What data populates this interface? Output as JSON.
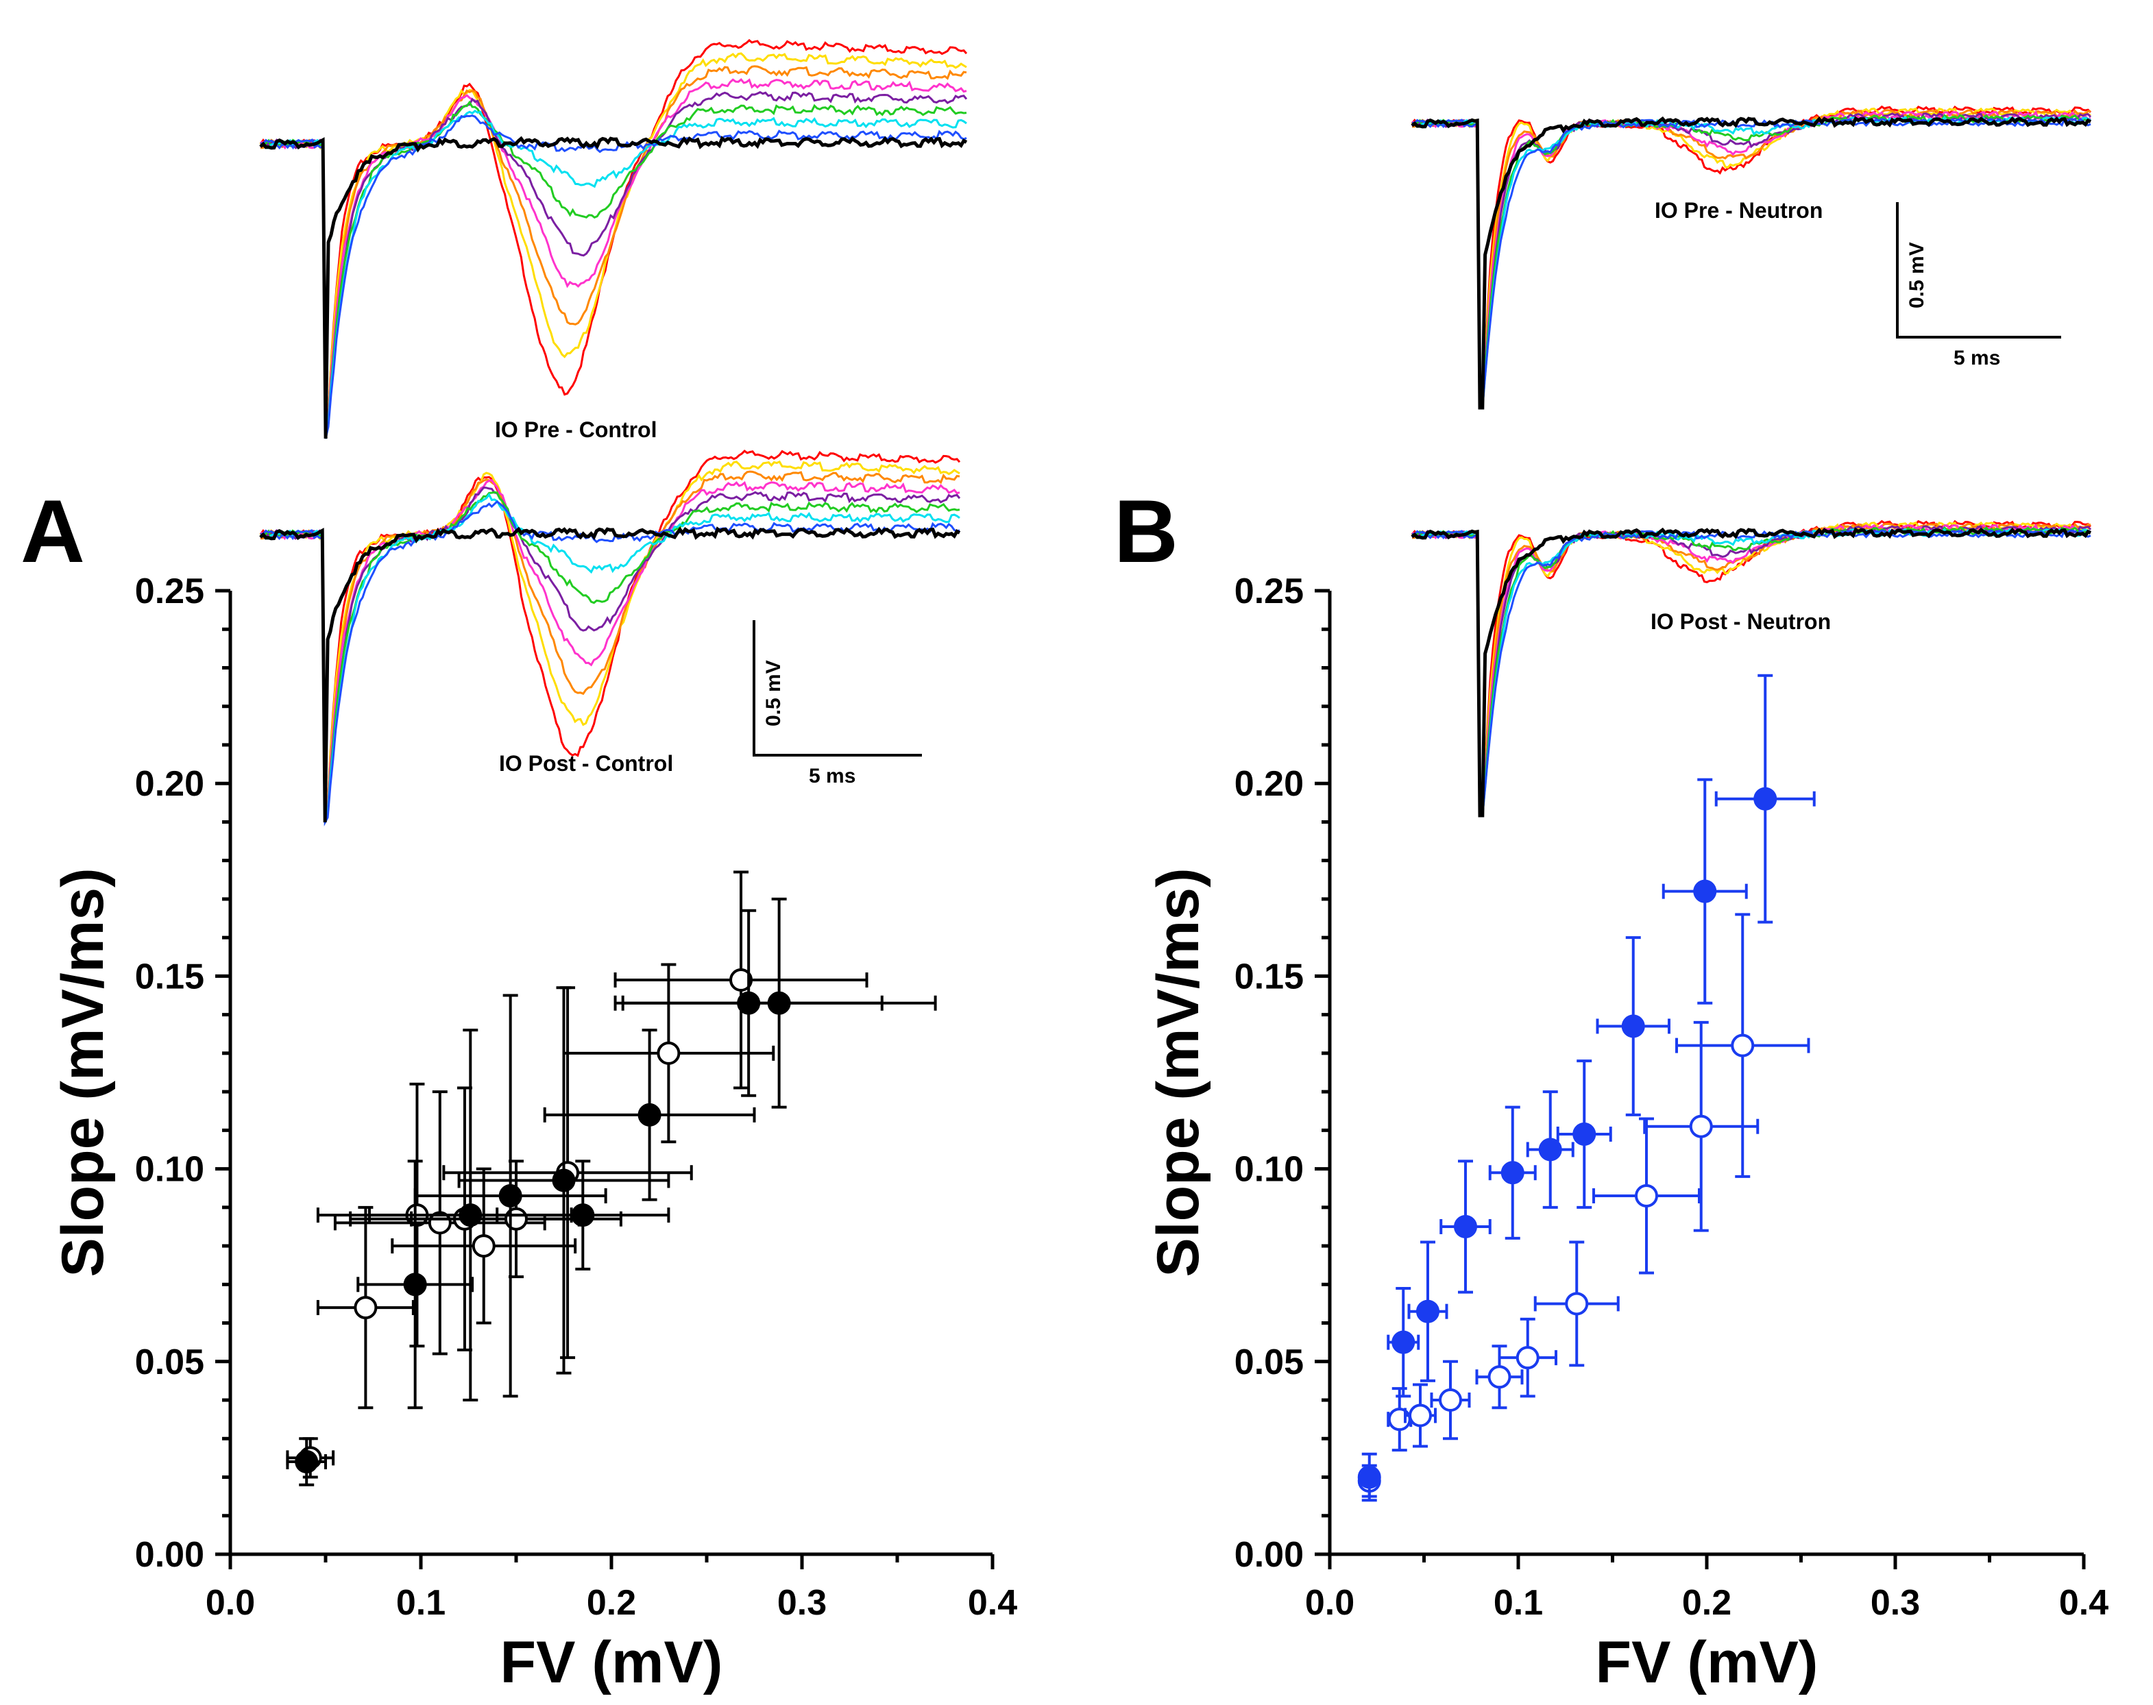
{
  "panel_letters": {
    "a": "A",
    "b": "B"
  },
  "trace_labels": {
    "io_pre_control": "IO Pre - Control",
    "io_post_control": "IO Post - Control",
    "io_pre_neutron": "IO Pre - Neutron",
    "io_post_neutron": "IO Post - Neutron"
  },
  "scale_bars": {
    "control": {
      "voltage": "0.5 mV",
      "time": "5 ms"
    },
    "neutron": {
      "voltage": "0.5 mV",
      "time": "5 ms"
    }
  },
  "trace_colors": [
    "#ff0000",
    "#ffdd00",
    "#ff8800",
    "#ff33cc",
    "#7b1fa2",
    "#22cc22",
    "#00e0f0",
    "#1f4fff",
    "#000000"
  ],
  "chart_data": [
    {
      "type": "scatter",
      "panel": "A",
      "title": "",
      "xlabel": "FV (mV)",
      "ylabel": "Slope (mV/ms)",
      "xlim": [
        0.0,
        0.4
      ],
      "ylim": [
        0.0,
        0.25
      ],
      "x_ticks": [
        "0.0",
        "0.1",
        "0.2",
        "0.3",
        "0.4"
      ],
      "y_ticks": [
        "0.00",
        "0.05",
        "0.10",
        "0.15",
        "0.20",
        "0.25"
      ],
      "color": "#000000",
      "series": [
        {
          "name": "IO Pre - Control",
          "marker": "filled-circle",
          "points": [
            {
              "x": 0.04,
              "y": 0.024,
              "xerr": 0.01,
              "yerr": 0.006
            },
            {
              "x": 0.097,
              "y": 0.07,
              "xerr": 0.03,
              "yerr": 0.032
            },
            {
              "x": 0.126,
              "y": 0.088,
              "xerr": 0.053,
              "yerr": 0.048
            },
            {
              "x": 0.147,
              "y": 0.093,
              "xerr": 0.05,
              "yerr": 0.052
            },
            {
              "x": 0.175,
              "y": 0.097,
              "xerr": 0.055,
              "yerr": 0.05
            },
            {
              "x": 0.185,
              "y": 0.088,
              "xerr": 0.045,
              "yerr": 0.014
            },
            {
              "x": 0.22,
              "y": 0.114,
              "xerr": 0.055,
              "yerr": 0.022
            },
            {
              "x": 0.272,
              "y": 0.143,
              "xerr": 0.07,
              "yerr": 0.024
            },
            {
              "x": 0.288,
              "y": 0.143,
              "xerr": 0.082,
              "yerr": 0.027
            }
          ]
        },
        {
          "name": "IO Post - Control",
          "marker": "open-circle",
          "points": [
            {
              "x": 0.042,
              "y": 0.025,
              "xerr": 0.012,
              "yerr": 0.005
            },
            {
              "x": 0.071,
              "y": 0.064,
              "xerr": 0.025,
              "yerr": 0.026
            },
            {
              "x": 0.098,
              "y": 0.088,
              "xerr": 0.052,
              "yerr": 0.034
            },
            {
              "x": 0.11,
              "y": 0.086,
              "xerr": 0.055,
              "yerr": 0.034
            },
            {
              "x": 0.123,
              "y": 0.087,
              "xerr": 0.06,
              "yerr": 0.034
            },
            {
              "x": 0.133,
              "y": 0.08,
              "xerr": 0.048,
              "yerr": 0.02
            },
            {
              "x": 0.15,
              "y": 0.087,
              "xerr": 0.055,
              "yerr": 0.015
            },
            {
              "x": 0.177,
              "y": 0.099,
              "xerr": 0.065,
              "yerr": 0.048
            },
            {
              "x": 0.23,
              "y": 0.13,
              "xerr": 0.055,
              "yerr": 0.023
            },
            {
              "x": 0.268,
              "y": 0.149,
              "xerr": 0.066,
              "yerr": 0.028
            }
          ]
        }
      ]
    },
    {
      "type": "scatter",
      "panel": "B",
      "title": "",
      "xlabel": "FV (mV)",
      "ylabel": "Slope (mV/ms)",
      "xlim": [
        0.0,
        0.4
      ],
      "ylim": [
        0.0,
        0.25
      ],
      "x_ticks": [
        "0.0",
        "0.1",
        "0.2",
        "0.3",
        "0.4"
      ],
      "y_ticks": [
        "0.00",
        "0.05",
        "0.10",
        "0.15",
        "0.20",
        "0.25"
      ],
      "color": "#1a3cf0",
      "series": [
        {
          "name": "IO Pre - Neutron",
          "marker": "filled-circle",
          "points": [
            {
              "x": 0.021,
              "y": 0.02,
              "xerr": 0.004,
              "yerr": 0.006
            },
            {
              "x": 0.039,
              "y": 0.055,
              "xerr": 0.008,
              "yerr": 0.014
            },
            {
              "x": 0.052,
              "y": 0.063,
              "xerr": 0.01,
              "yerr": 0.018
            },
            {
              "x": 0.072,
              "y": 0.085,
              "xerr": 0.013,
              "yerr": 0.017
            },
            {
              "x": 0.097,
              "y": 0.099,
              "xerr": 0.012,
              "yerr": 0.017
            },
            {
              "x": 0.117,
              "y": 0.105,
              "xerr": 0.012,
              "yerr": 0.015
            },
            {
              "x": 0.135,
              "y": 0.109,
              "xerr": 0.014,
              "yerr": 0.019
            },
            {
              "x": 0.161,
              "y": 0.137,
              "xerr": 0.019,
              "yerr": 0.023
            },
            {
              "x": 0.199,
              "y": 0.172,
              "xerr": 0.022,
              "yerr": 0.029
            },
            {
              "x": 0.231,
              "y": 0.196,
              "xerr": 0.026,
              "yerr": 0.032
            }
          ]
        },
        {
          "name": "IO Post - Neutron",
          "marker": "open-circle",
          "points": [
            {
              "x": 0.021,
              "y": 0.019,
              "xerr": 0.004,
              "yerr": 0.004
            },
            {
              "x": 0.037,
              "y": 0.035,
              "xerr": 0.006,
              "yerr": 0.008
            },
            {
              "x": 0.048,
              "y": 0.036,
              "xerr": 0.008,
              "yerr": 0.008
            },
            {
              "x": 0.064,
              "y": 0.04,
              "xerr": 0.01,
              "yerr": 0.01
            },
            {
              "x": 0.09,
              "y": 0.046,
              "xerr": 0.012,
              "yerr": 0.008
            },
            {
              "x": 0.105,
              "y": 0.051,
              "xerr": 0.015,
              "yerr": 0.01
            },
            {
              "x": 0.131,
              "y": 0.065,
              "xerr": 0.022,
              "yerr": 0.016
            },
            {
              "x": 0.168,
              "y": 0.093,
              "xerr": 0.028,
              "yerr": 0.02
            },
            {
              "x": 0.197,
              "y": 0.111,
              "xerr": 0.03,
              "yerr": 0.027
            },
            {
              "x": 0.219,
              "y": 0.132,
              "xerr": 0.035,
              "yerr": 0.034
            }
          ]
        }
      ]
    }
  ]
}
